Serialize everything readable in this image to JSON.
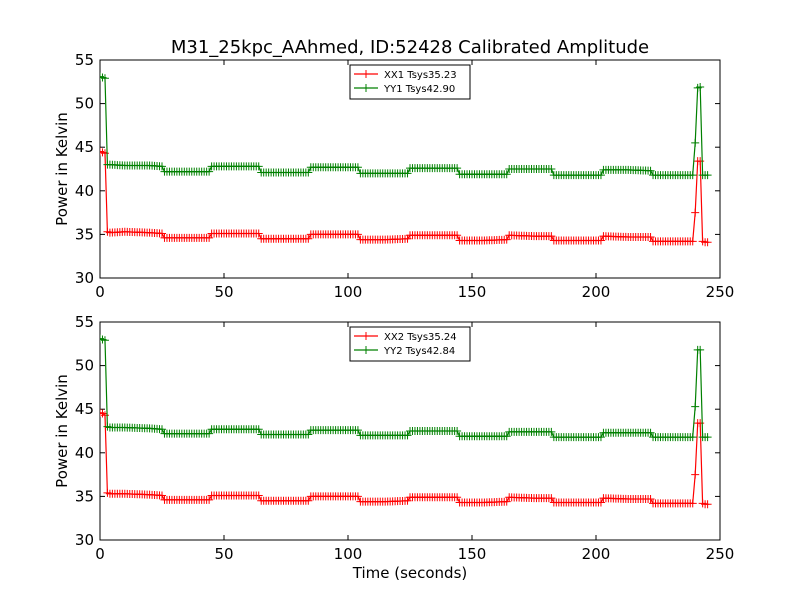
{
  "figure_title": "M31_25kpc_AAhmed, ID:52428 Calibrated Amplitude",
  "colors": {
    "xx": "#ff0000",
    "yy": "#008000",
    "frame": "#000000"
  },
  "chart_data": [
    {
      "type": "line",
      "panel": "top",
      "title": "M31_25kpc_AAhmed, ID:52428 Calibrated Amplitude",
      "xlabel": "",
      "ylabel": "Power in Kelvin",
      "xlim": [
        0,
        250
      ],
      "ylim": [
        30,
        55
      ],
      "xticks": [
        "0",
        "50",
        "100",
        "150",
        "200",
        "250"
      ],
      "yticks": [
        "30",
        "35",
        "40",
        "45",
        "50",
        "55"
      ],
      "grid": false,
      "legend_position": "top-center",
      "marker": "+",
      "series": [
        {
          "name": "XX1 Tsys35.23",
          "color": "#ff0000",
          "x": [
            0,
            1,
            2,
            3,
            4,
            10,
            20,
            25,
            26,
            35,
            44,
            45,
            55,
            64,
            65,
            75,
            84,
            85,
            95,
            104,
            105,
            115,
            124,
            125,
            135,
            144,
            145,
            155,
            164,
            165,
            175,
            182,
            183,
            193,
            202,
            203,
            213,
            222,
            223,
            233,
            239,
            240,
            241,
            242,
            243,
            244,
            245
          ],
          "y": [
            44.5,
            44.4,
            44.3,
            35.3,
            35.2,
            35.3,
            35.2,
            35.1,
            34.6,
            34.6,
            34.6,
            35.1,
            35.1,
            35.1,
            34.5,
            34.5,
            34.5,
            35.0,
            35.0,
            35.0,
            34.4,
            34.4,
            34.5,
            34.9,
            34.9,
            34.9,
            34.3,
            34.3,
            34.4,
            34.9,
            34.8,
            34.8,
            34.3,
            34.3,
            34.3,
            34.8,
            34.7,
            34.7,
            34.2,
            34.2,
            34.2,
            37.5,
            43.4,
            43.4,
            34.2,
            34.1,
            34.1
          ]
        },
        {
          "name": "YY1 Tsys42.90",
          "color": "#008000",
          "x": [
            0,
            1,
            2,
            3,
            4,
            10,
            20,
            25,
            26,
            35,
            44,
            45,
            55,
            64,
            65,
            75,
            84,
            85,
            95,
            104,
            105,
            115,
            124,
            125,
            135,
            144,
            145,
            155,
            164,
            165,
            175,
            182,
            183,
            193,
            202,
            203,
            213,
            222,
            223,
            233,
            239,
            240,
            241,
            242,
            243,
            244,
            245
          ],
          "y": [
            53.1,
            53.0,
            52.9,
            43.0,
            43.0,
            42.9,
            42.9,
            42.8,
            42.2,
            42.2,
            42.2,
            42.8,
            42.8,
            42.8,
            42.1,
            42.1,
            42.1,
            42.7,
            42.7,
            42.7,
            42.0,
            42.0,
            42.0,
            42.6,
            42.6,
            42.6,
            41.9,
            41.9,
            41.9,
            42.5,
            42.5,
            42.5,
            41.8,
            41.8,
            41.8,
            42.4,
            42.4,
            42.3,
            41.8,
            41.8,
            41.8,
            45.5,
            51.8,
            51.9,
            41.8,
            41.8,
            41.8
          ]
        }
      ]
    },
    {
      "type": "line",
      "panel": "bottom",
      "title": "",
      "xlabel": "Time (seconds)",
      "ylabel": "Power in Kelvin",
      "xlim": [
        0,
        250
      ],
      "ylim": [
        30,
        55
      ],
      "xticks": [
        "0",
        "50",
        "100",
        "150",
        "200",
        "250"
      ],
      "yticks": [
        "30",
        "35",
        "40",
        "45",
        "50",
        "55"
      ],
      "grid": false,
      "legend_position": "top-center",
      "marker": "+",
      "series": [
        {
          "name": "XX2 Tsys35.24",
          "color": "#ff0000",
          "x": [
            0,
            1,
            2,
            3,
            4,
            10,
            20,
            25,
            26,
            35,
            44,
            45,
            55,
            64,
            65,
            75,
            84,
            85,
            95,
            104,
            105,
            115,
            124,
            125,
            135,
            144,
            145,
            155,
            164,
            165,
            175,
            182,
            183,
            193,
            202,
            203,
            213,
            222,
            223,
            233,
            239,
            240,
            241,
            242,
            243,
            244,
            245
          ],
          "y": [
            44.6,
            44.5,
            44.3,
            35.4,
            35.3,
            35.3,
            35.2,
            35.1,
            34.6,
            34.6,
            34.6,
            35.1,
            35.1,
            35.1,
            34.5,
            34.5,
            34.5,
            35.0,
            35.0,
            35.0,
            34.4,
            34.4,
            34.5,
            34.9,
            34.9,
            34.9,
            34.3,
            34.3,
            34.4,
            34.9,
            34.8,
            34.8,
            34.3,
            34.3,
            34.3,
            34.8,
            34.7,
            34.7,
            34.2,
            34.2,
            34.2,
            37.5,
            43.4,
            43.4,
            34.2,
            34.1,
            34.1
          ]
        },
        {
          "name": "YY2 Tsys42.84",
          "color": "#008000",
          "x": [
            0,
            1,
            2,
            3,
            4,
            10,
            20,
            25,
            26,
            35,
            44,
            45,
            55,
            64,
            65,
            75,
            84,
            85,
            95,
            104,
            105,
            115,
            124,
            125,
            135,
            144,
            145,
            155,
            164,
            165,
            175,
            182,
            183,
            193,
            202,
            203,
            213,
            222,
            223,
            233,
            239,
            240,
            241,
            242,
            243,
            244,
            245
          ],
          "y": [
            53.1,
            53.0,
            52.9,
            43.0,
            42.9,
            42.9,
            42.8,
            42.7,
            42.2,
            42.2,
            42.2,
            42.7,
            42.7,
            42.7,
            42.1,
            42.1,
            42.1,
            42.6,
            42.6,
            42.6,
            42.0,
            42.0,
            42.0,
            42.5,
            42.5,
            42.5,
            41.9,
            41.9,
            41.9,
            42.4,
            42.4,
            42.4,
            41.8,
            41.8,
            41.8,
            42.3,
            42.3,
            42.3,
            41.8,
            41.8,
            41.8,
            45.3,
            51.8,
            51.8,
            41.8,
            41.8,
            41.8
          ]
        }
      ]
    }
  ]
}
